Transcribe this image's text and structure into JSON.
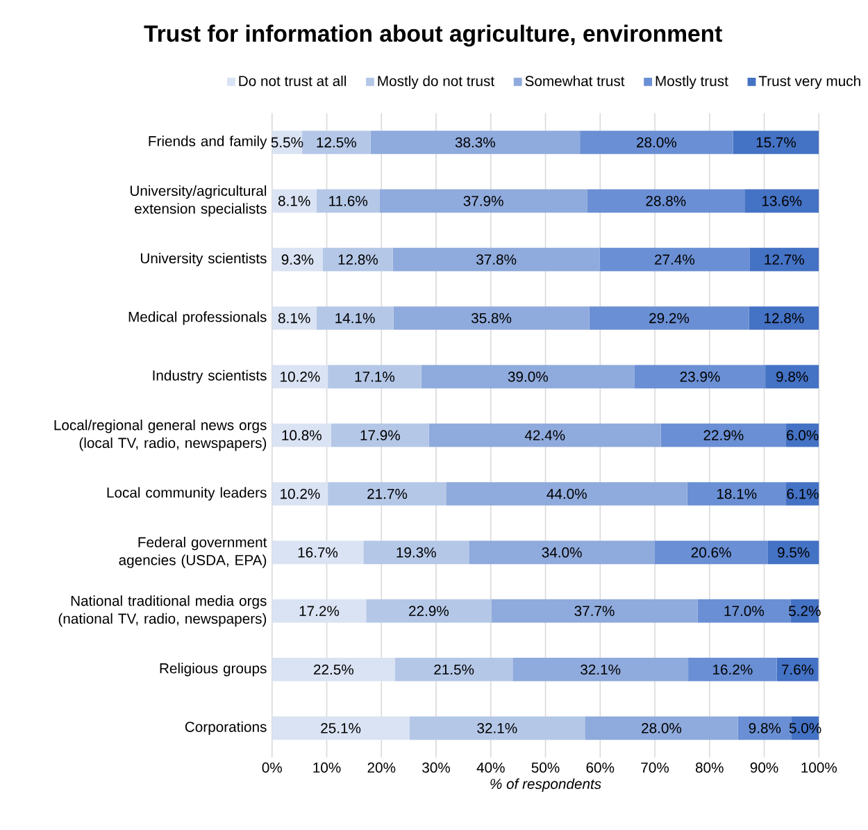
{
  "chart_data": {
    "type": "bar",
    "orientation": "horizontal",
    "stacked": true,
    "title": "Trust for information about agriculture, environment",
    "xlabel": "% of respondents",
    "categories": [
      "Friends and family",
      "University/agricultural extension specialists",
      "University scientists",
      "Medical professionals",
      "Industry scientists",
      "Local/regional general news orgs (local TV, radio, newspapers)",
      "Local community leaders",
      "Federal government agencies (USDA, EPA)",
      "National traditional media orgs (national TV, radio, newspapers)",
      "Religious groups",
      "Corporations"
    ],
    "series": [
      {
        "name": "Do not trust at all",
        "color": "#dae3f3",
        "values": [
          5.5,
          8.1,
          9.3,
          8.1,
          10.2,
          10.8,
          10.2,
          16.7,
          17.2,
          22.5,
          25.1
        ],
        "value_labels": [
          "5.5%",
          "8.1%",
          "9.3%",
          "8.1%",
          "10.2%",
          "10.8%",
          "10.2%",
          "16.7%",
          "17.2%",
          "22.5%",
          "25.1%"
        ]
      },
      {
        "name": "Mostly do not trust",
        "color": "#b4c7e7",
        "values": [
          12.5,
          11.6,
          12.8,
          14.1,
          17.1,
          17.9,
          21.7,
          19.3,
          22.9,
          21.5,
          32.1
        ],
        "value_labels": [
          "12.5%",
          "11.6%",
          "12.8%",
          "14.1%",
          "17.1%",
          "17.9%",
          "21.7%",
          "19.3%",
          "22.9%",
          "21.5%",
          "32.1%"
        ]
      },
      {
        "name": "Somewhat trust",
        "color": "#8faadc",
        "values": [
          38.3,
          37.9,
          37.8,
          35.8,
          39.0,
          42.4,
          44.0,
          34.0,
          37.7,
          32.1,
          28.0
        ],
        "value_labels": [
          "38.3%",
          "37.9%",
          "37.8%",
          "35.8%",
          "39.0%",
          "42.4%",
          "44.0%",
          "34.0%",
          "37.7%",
          "32.1%",
          "28.0%"
        ]
      },
      {
        "name": "Mostly trust",
        "color": "#6a8fd4",
        "values": [
          28.0,
          28.8,
          27.4,
          29.2,
          23.9,
          22.9,
          18.1,
          20.6,
          17.0,
          16.2,
          9.8
        ],
        "value_labels": [
          "28.0%",
          "28.8%",
          "27.4%",
          "29.2%",
          "23.9%",
          "22.9%",
          "18.1%",
          "20.6%",
          "17.0%",
          "16.2%",
          "9.8%"
        ]
      },
      {
        "name": "Trust very much",
        "color": "#4472c4",
        "values": [
          15.7,
          13.6,
          12.7,
          12.8,
          9.8,
          6.0,
          6.1,
          9.5,
          5.2,
          7.6,
          5.0
        ],
        "value_labels": [
          "15.7%",
          "13.6%",
          "12.7%",
          "12.8%",
          "9.8%",
          "6.0%",
          "6.1%",
          "9.5%",
          "5.2%",
          "7.6%",
          "5.0%"
        ]
      }
    ],
    "xlim": [
      0,
      100
    ],
    "xticks": [
      {
        "value": 0,
        "label": "0%"
      },
      {
        "value": 10,
        "label": "10%"
      },
      {
        "value": 20,
        "label": "20%"
      },
      {
        "value": 30,
        "label": "30%"
      },
      {
        "value": 40,
        "label": "40%"
      },
      {
        "value": 50,
        "label": "50%"
      },
      {
        "value": 60,
        "label": "60%"
      },
      {
        "value": 70,
        "label": "70%"
      },
      {
        "value": 80,
        "label": "80%"
      },
      {
        "value": 90,
        "label": "90%"
      },
      {
        "value": 100,
        "label": "100%"
      }
    ],
    "grid": "x",
    "legend": "top"
  }
}
